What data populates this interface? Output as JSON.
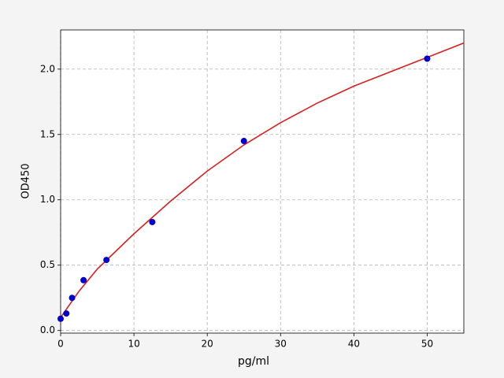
{
  "chart_data": {
    "type": "scatter",
    "xlabel": "pg/ml",
    "ylabel": "OD450",
    "xlim": [
      0,
      55
    ],
    "ylim": [
      -0.02,
      2.3
    ],
    "xticks": [
      0,
      10,
      20,
      30,
      40,
      50
    ],
    "yticks": [
      {
        "value": 0,
        "label": "0.0"
      },
      0.5,
      {
        "value": 1,
        "label": "1.0"
      },
      1.5,
      {
        "value": 2,
        "label": "2.0"
      }
    ],
    "grid": true,
    "points": {
      "color": "#0000cc",
      "x": [
        0,
        0.78,
        1.56,
        3.125,
        6.25,
        12.5,
        25,
        50
      ],
      "y": [
        0.09,
        0.13,
        0.25,
        0.385,
        0.54,
        0.83,
        1.45,
        2.08
      ]
    },
    "curve": {
      "color": "#d62020",
      "x": [
        0,
        2.5,
        5,
        10,
        15,
        20,
        25,
        30,
        35,
        40,
        45,
        50,
        55
      ],
      "y": [
        0.1,
        0.3,
        0.47,
        0.74,
        0.99,
        1.22,
        1.42,
        1.59,
        1.74,
        1.87,
        1.98,
        2.09,
        2.2
      ]
    }
  }
}
